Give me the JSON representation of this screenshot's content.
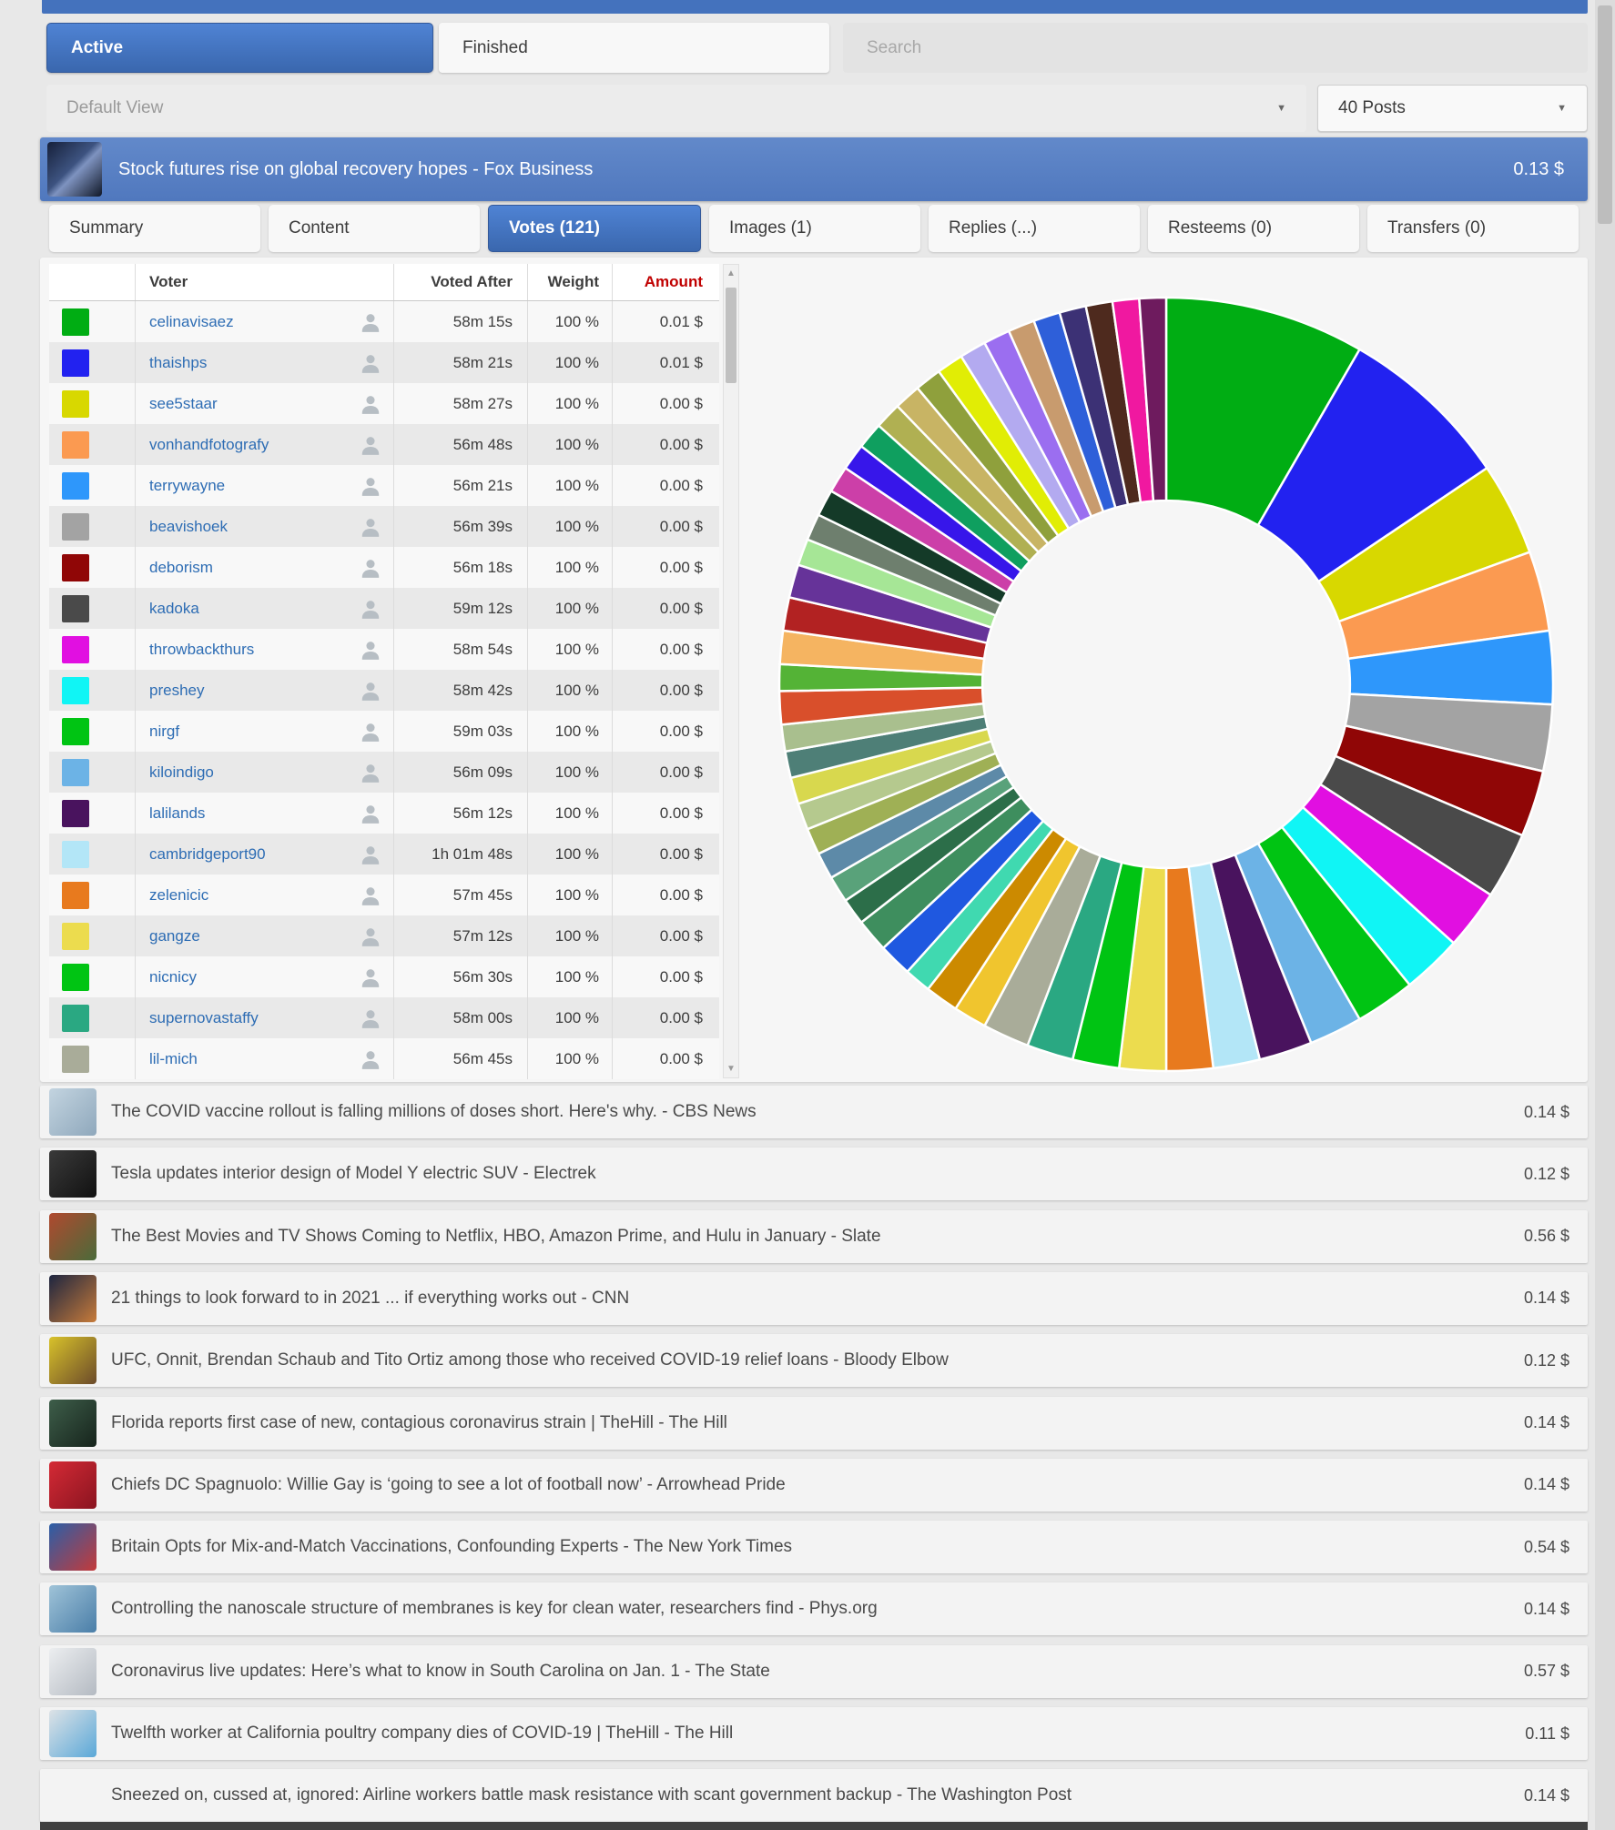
{
  "toolbar": {
    "active_label": "Active",
    "finished_label": "Finished",
    "search_placeholder": "Search",
    "view_value": "Default View",
    "posts_value": "40 Posts"
  },
  "selected_post": {
    "title": "Stock futures rise on global recovery hopes - Fox Business",
    "amount": "0.13 $"
  },
  "detail_tabs": [
    {
      "label": "Summary",
      "active": false
    },
    {
      "label": "Content",
      "active": false
    },
    {
      "label": "Votes (121)",
      "active": true
    },
    {
      "label": "Images (1)",
      "active": false
    },
    {
      "label": "Replies (...)",
      "active": false
    },
    {
      "label": "Resteems (0)",
      "active": false
    },
    {
      "label": "Transfers (0)",
      "active": false
    }
  ],
  "votes_table": {
    "headers": {
      "voter": "Voter",
      "voted_after": "Voted After",
      "weight": "Weight",
      "amount": "Amount"
    },
    "amount_header_color": "#c00000",
    "rows": [
      {
        "color": "#00ad13",
        "name": "celinavisaez",
        "voted_after": "58m 15s",
        "weight": "100 %",
        "amount": "0.01 $"
      },
      {
        "color": "#2222f0",
        "name": "thaishps",
        "voted_after": "58m 21s",
        "weight": "100 %",
        "amount": "0.01 $"
      },
      {
        "color": "#d8d800",
        "name": "see5staar",
        "voted_after": "58m 27s",
        "weight": "100 %",
        "amount": "0.00 $"
      },
      {
        "color": "#fb9a51",
        "name": "vonhandfotografy",
        "voted_after": "56m 48s",
        "weight": "100 %",
        "amount": "0.00 $"
      },
      {
        "color": "#2e97fb",
        "name": "terrywayne",
        "voted_after": "56m 21s",
        "weight": "100 %",
        "amount": "0.00 $"
      },
      {
        "color": "#a3a3a3",
        "name": "beavishoek",
        "voted_after": "56m 39s",
        "weight": "100 %",
        "amount": "0.00 $"
      },
      {
        "color": "#900606",
        "name": "deborism",
        "voted_after": "56m 18s",
        "weight": "100 %",
        "amount": "0.00 $"
      },
      {
        "color": "#4a4a4a",
        "name": "kadoka",
        "voted_after": "59m 12s",
        "weight": "100 %",
        "amount": "0.00 $"
      },
      {
        "color": "#e10fe1",
        "name": "throwbackthurs",
        "voted_after": "58m 54s",
        "weight": "100 %",
        "amount": "0.00 $"
      },
      {
        "color": "#10f5f5",
        "name": "preshey",
        "voted_after": "58m 42s",
        "weight": "100 %",
        "amount": "0.00 $"
      },
      {
        "color": "#00c413",
        "name": "nirgf",
        "voted_after": "59m 03s",
        "weight": "100 %",
        "amount": "0.00 $"
      },
      {
        "color": "#6cb3e6",
        "name": "kiloindigo",
        "voted_after": "56m 09s",
        "weight": "100 %",
        "amount": "0.00 $"
      },
      {
        "color": "#49135e",
        "name": "lalilands",
        "voted_after": "56m 12s",
        "weight": "100 %",
        "amount": "0.00 $"
      },
      {
        "color": "#b3e6f7",
        "name": "cambridgeport90",
        "voted_after": "1h 01m 48s",
        "weight": "100 %",
        "amount": "0.00 $"
      },
      {
        "color": "#e87a1e",
        "name": "zelenicic",
        "voted_after": "57m 45s",
        "weight": "100 %",
        "amount": "0.00 $"
      },
      {
        "color": "#ecdc4e",
        "name": "gangze",
        "voted_after": "57m 12s",
        "weight": "100 %",
        "amount": "0.00 $"
      },
      {
        "color": "#00c413",
        "name": "nicnicy",
        "voted_after": "56m 30s",
        "weight": "100 %",
        "amount": "0.00 $"
      },
      {
        "color": "#2aa882",
        "name": "supernovastaffy",
        "voted_after": "58m 00s",
        "weight": "100 %",
        "amount": "0.00 $"
      },
      {
        "color": "#a9ac99",
        "name": "lil-mich",
        "voted_after": "56m 45s",
        "weight": "100 %",
        "amount": "0.00 $"
      }
    ]
  },
  "chart_data": {
    "type": "pie",
    "donut": true,
    "start_angle": "top",
    "direction": "clockwise",
    "inner_radius_ratio": 0.475,
    "legend": "none",
    "segments": [
      {
        "voter": "celinavisaez",
        "color": "#00ad13",
        "value": 30
      },
      {
        "voter": "thaishps",
        "color": "#2222f0",
        "value": 26
      },
      {
        "voter": "see5staar",
        "color": "#d8d800",
        "value": 14
      },
      {
        "voter": "vonhandfotografy",
        "color": "#fb9a51",
        "value": 12
      },
      {
        "voter": "terrywayne",
        "color": "#2e97fb",
        "value": 11
      },
      {
        "voter": "beavishoek",
        "color": "#a3a3a3",
        "value": 10
      },
      {
        "voter": "deborism",
        "color": "#900606",
        "value": 10
      },
      {
        "voter": "kadoka",
        "color": "#4a4a4a",
        "value": 10
      },
      {
        "voter": "throwbackthurs",
        "color": "#e10fe1",
        "value": 9
      },
      {
        "voter": "preshey",
        "color": "#10f5f5",
        "value": 9
      },
      {
        "voter": "nirgf",
        "color": "#00c413",
        "value": 9
      },
      {
        "voter": "kiloindigo",
        "color": "#6cb3e6",
        "value": 8
      },
      {
        "voter": "lalilands",
        "color": "#49135e",
        "value": 8
      },
      {
        "voter": "cambridgeport90",
        "color": "#b3e6f7",
        "value": 7
      },
      {
        "voter": "zelenicic",
        "color": "#e87a1e",
        "value": 7
      },
      {
        "voter": "gangze",
        "color": "#ecdc4e",
        "value": 7
      },
      {
        "voter": "nicnicy",
        "color": "#00c413",
        "value": 7
      },
      {
        "voter": "supernovastaffy",
        "color": "#2aa882",
        "value": 7
      },
      {
        "voter": "lil-mich",
        "color": "#a9ac99",
        "value": 7
      },
      {
        "color": "#f0c52e",
        "value": 5
      },
      {
        "color": "#cc8a00",
        "value": 5
      },
      {
        "color": "#40d9b0",
        "value": 4
      },
      {
        "color": "#1f58e0",
        "value": 5
      },
      {
        "color": "#3e8e5e",
        "value": 5
      },
      {
        "color": "#2c6e49",
        "value": 4
      },
      {
        "color": "#59a27a",
        "value": 4
      },
      {
        "color": "#5d8aa8",
        "value": 4
      },
      {
        "color": "#9fb055",
        "value": 4
      },
      {
        "color": "#b5c98e",
        "value": 4
      },
      {
        "color": "#d8d84e",
        "value": 4
      },
      {
        "color": "#4e7f77",
        "value": 4
      },
      {
        "color": "#a9bf8e",
        "value": 4
      },
      {
        "color": "#d94f2b",
        "value": 5
      },
      {
        "color": "#54b336",
        "value": 4
      },
      {
        "color": "#f5b461",
        "value": 5
      },
      {
        "color": "#b22222",
        "value": 5
      },
      {
        "color": "#663399",
        "value": 5
      },
      {
        "color": "#a6e696",
        "value": 4
      },
      {
        "color": "#6e7f6e",
        "value": 4
      },
      {
        "color": "#143a28",
        "value": 4
      },
      {
        "color": "#cc3fa8",
        "value": 4
      },
      {
        "color": "#3716ea",
        "value": 4
      },
      {
        "color": "#0f9f5f",
        "value": 4
      },
      {
        "color": "#b0b052",
        "value": 4
      },
      {
        "color": "#c8b464",
        "value": 4
      },
      {
        "color": "#8fa03c",
        "value": 4
      },
      {
        "color": "#e1ed05",
        "value": 4
      },
      {
        "color": "#b3aaf0",
        "value": 4
      },
      {
        "color": "#9b6ef0",
        "value": 4
      },
      {
        "color": "#c89b6e",
        "value": 4
      },
      {
        "color": "#2e5fd9",
        "value": 4
      },
      {
        "color": "#3c3175",
        "value": 4
      },
      {
        "color": "#4e2a1e",
        "value": 4
      },
      {
        "color": "#f018a0",
        "value": 4
      },
      {
        "color": "#6e1b5e",
        "value": 4
      }
    ]
  },
  "posts": [
    {
      "title": "The COVID vaccine rollout is falling millions of doses short. Here's why. - CBS News",
      "amount": "0.14 $",
      "thumb": [
        "#c3d4e0",
        "#8fa8bc"
      ]
    },
    {
      "title": "Tesla updates interior design of Model Y electric SUV - Electrek",
      "amount": "0.12 $",
      "thumb": [
        "#3a3a3a",
        "#111111"
      ]
    },
    {
      "title": "The Best Movies and TV Shows Coming to Netflix, HBO, Amazon Prime, and Hulu in January - Slate",
      "amount": "0.56 $",
      "thumb": [
        "#b0492f",
        "#4a6b3a"
      ]
    },
    {
      "title": "21 things to look forward to in 2021 ... if everything works out - CNN",
      "amount": "0.14 $",
      "thumb": [
        "#1d2540",
        "#c77b3a"
      ]
    },
    {
      "title": "UFC, Onnit, Brendan Schaub and Tito Ortiz among those who received COVID-19 relief loans - Bloody Elbow",
      "amount": "0.12 $",
      "thumb": [
        "#d8c22a",
        "#6b4a2a"
      ]
    },
    {
      "title": "Florida reports first case of new, contagious coronavirus strain | TheHill - The Hill",
      "amount": "0.14 $",
      "thumb": [
        "#3e5e4a",
        "#16241c"
      ]
    },
    {
      "title": "Chiefs DC Spagnuolo: Willie Gay is ‘going to see a lot of football now’ - Arrowhead Pride",
      "amount": "0.14 $",
      "thumb": [
        "#d42a35",
        "#8a1420"
      ]
    },
    {
      "title": "Britain Opts for Mix-and-Match Vaccinations, Confounding Experts - The New York Times",
      "amount": "0.54 $",
      "thumb": [
        "#2a5fa8",
        "#c43a3a"
      ]
    },
    {
      "title": "Controlling the nanoscale structure of membranes is key for clean water, researchers find - Phys.org",
      "amount": "0.14 $",
      "thumb": [
        "#9fc3d8",
        "#4a7ea8"
      ]
    },
    {
      "title": "Coronavirus live updates: Here’s what to know in South Carolina on Jan. 1 - The State",
      "amount": "0.57 $",
      "thumb": [
        "#eceef0",
        "#b4bac2"
      ]
    },
    {
      "title": "Twelfth worker at California poultry company dies of COVID-19 | TheHill - The Hill",
      "amount": "0.11 $",
      "thumb": [
        "#dde2e6",
        "#5aa8d8"
      ]
    },
    {
      "title": "Sneezed on, cussed at, ignored: Airline workers battle mask resistance with scant government backup - The Washington Post",
      "amount": "0.14 $",
      "thumb": null
    }
  ]
}
